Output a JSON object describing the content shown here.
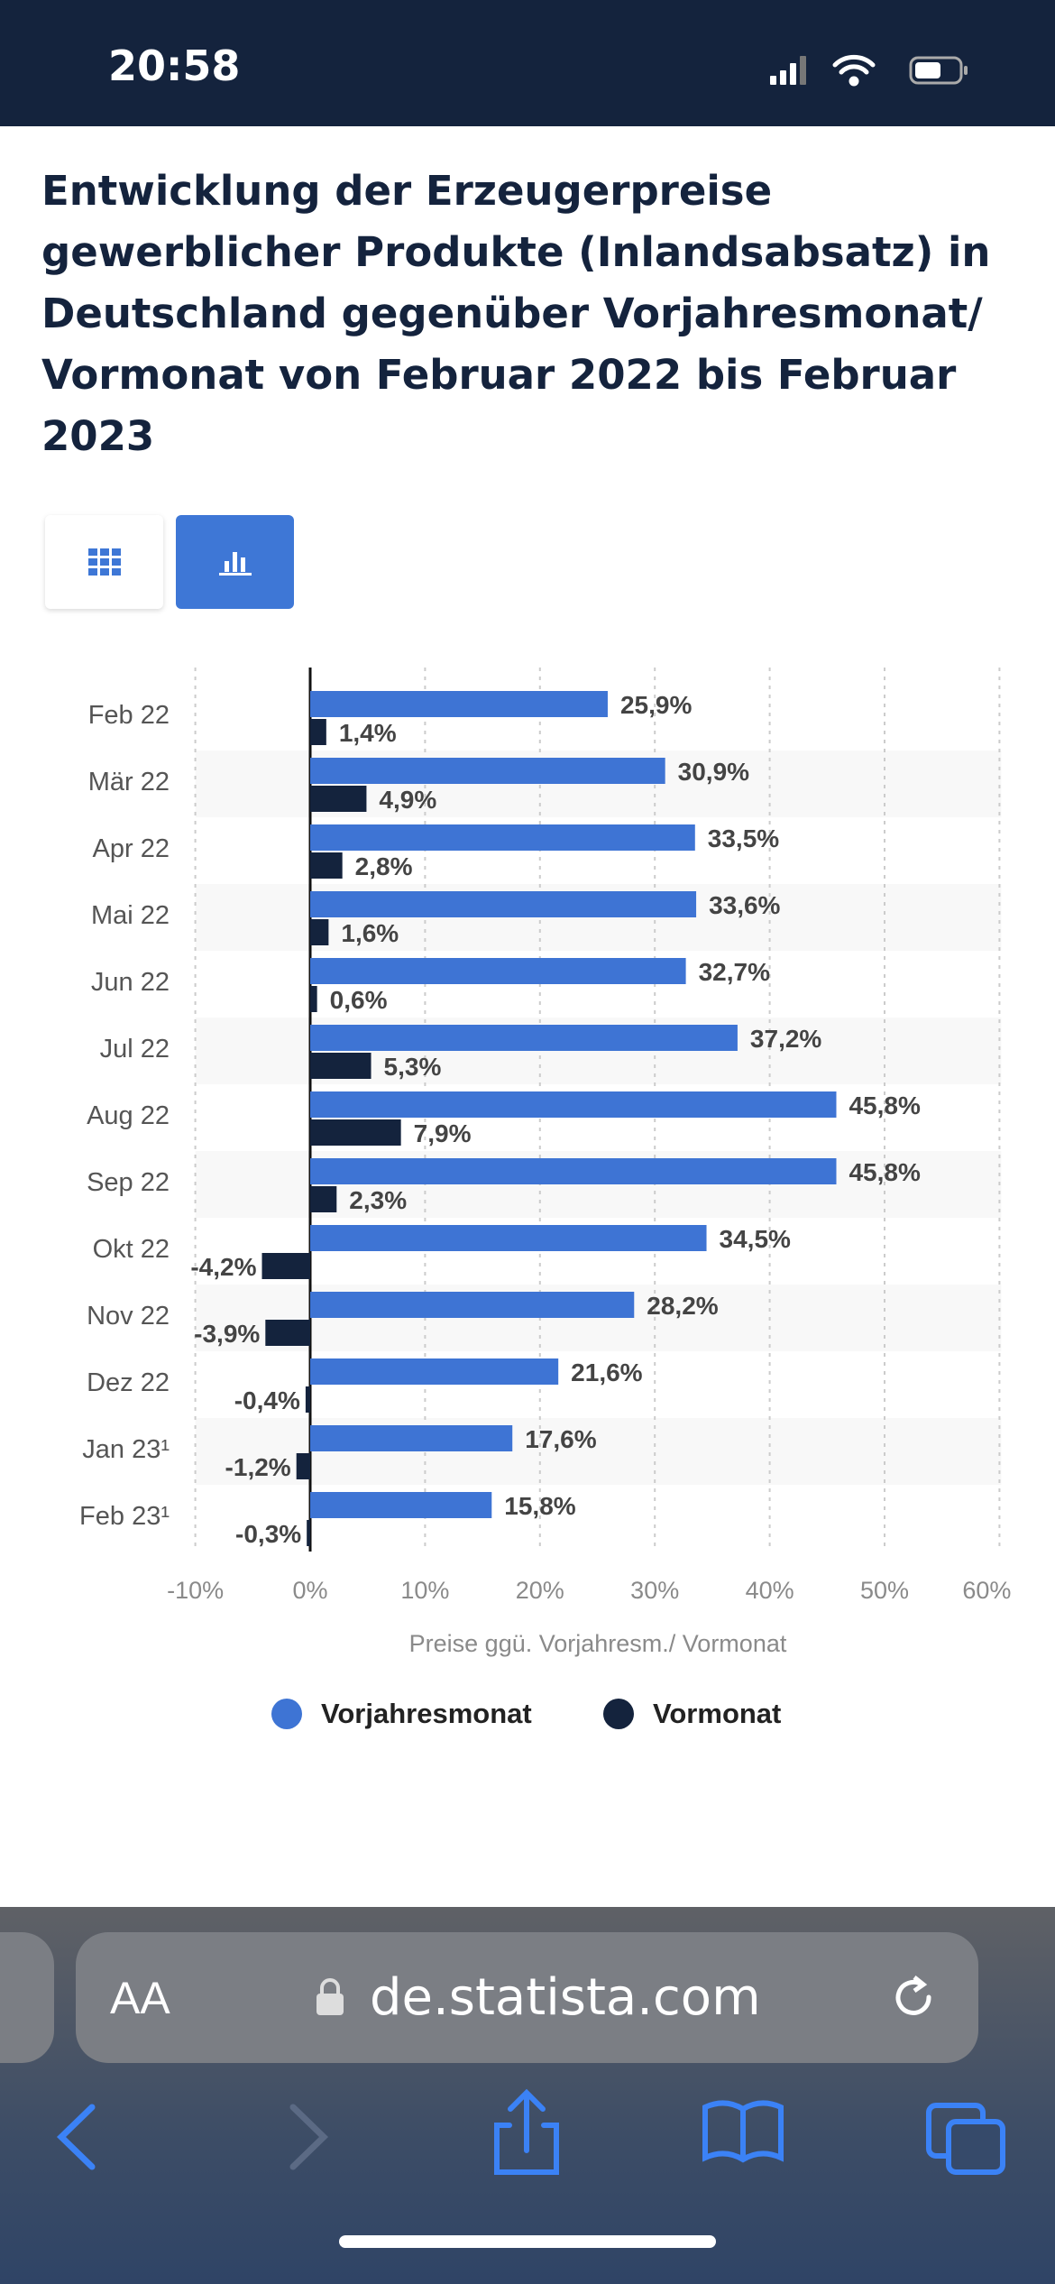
{
  "status": {
    "time": "20:58"
  },
  "title": "Entwicklung der Erzeugerpreise gewerblicher Produkte (Inlandsabsatz) in Deutschland gegenüber Vorjahresmonat/ Vormonat von Februar 2022 bis Februar 2023",
  "toolbar": {
    "table_icon": "grid-icon",
    "chart_icon": "bar-chart-icon"
  },
  "chart_data": {
    "type": "bar",
    "orientation": "horizontal",
    "categories": [
      "Feb 22",
      "Mär 22",
      "Apr 22",
      "Mai 22",
      "Jun 22",
      "Jul 22",
      "Aug 22",
      "Sep 22",
      "Okt 22",
      "Nov 22",
      "Dez 22",
      "Jan 23¹",
      "Feb 23¹"
    ],
    "series": [
      {
        "name": "Vorjahresmonat",
        "color": "#3e74d4",
        "values": [
          25.9,
          30.9,
          33.5,
          33.6,
          32.7,
          37.2,
          45.8,
          45.8,
          34.5,
          28.2,
          21.6,
          17.6,
          15.8
        ],
        "labels": [
          "25,9%",
          "30,9%",
          "33,5%",
          "33,6%",
          "32,7%",
          "37,2%",
          "45,8%",
          "45,8%",
          "34,5%",
          "28,2%",
          "21,6%",
          "17,6%",
          "15,8%"
        ]
      },
      {
        "name": "Vormonat",
        "color": "#14233d",
        "values": [
          1.4,
          4.9,
          2.8,
          1.6,
          0.6,
          5.3,
          7.9,
          2.3,
          -4.2,
          -3.9,
          -0.4,
          -1.2,
          -0.3
        ],
        "labels": [
          "1,4%",
          "4,9%",
          "2,8%",
          "1,6%",
          "0,6%",
          "5,3%",
          "7,9%",
          "2,3%",
          "-4,2%",
          "-3,9%",
          "-0,4%",
          "-1,2%",
          "-0,3%"
        ]
      }
    ],
    "xlim": [
      -10,
      60
    ],
    "xticks": [
      -10,
      0,
      10,
      20,
      30,
      40,
      50,
      60
    ],
    "xtick_labels": [
      "-10%",
      "0%",
      "10%",
      "20%",
      "30%",
      "40%",
      "50%",
      "60%"
    ],
    "xlabel": "Preise ggü. Vorjahresm./ Vormonat",
    "legend": "bottom",
    "grid": true
  },
  "browser": {
    "text_size": "AA",
    "url": "de.statista.com"
  }
}
